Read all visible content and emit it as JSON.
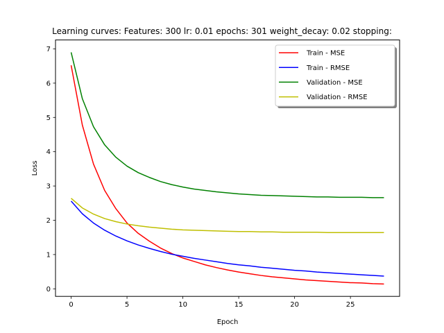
{
  "chart_data": {
    "type": "line",
    "title": "Learning curves: Features: 300 lr: 0.01 epochs: 301 weight_decay: 0.02 stopping:",
    "xlabel": "Epoch",
    "ylabel": "Loss",
    "xlim": [
      -1.4,
      29.4
    ],
    "ylim": [
      -0.22,
      7.26
    ],
    "xticks": [
      0,
      5,
      10,
      15,
      20,
      25
    ],
    "yticks": [
      0,
      1,
      2,
      3,
      4,
      5,
      6,
      7
    ],
    "grid": false,
    "legend_position": "top-right",
    "x": [
      0,
      1,
      2,
      3,
      4,
      5,
      6,
      7,
      8,
      9,
      10,
      11,
      12,
      13,
      14,
      15,
      16,
      17,
      18,
      19,
      20,
      21,
      22,
      23,
      24,
      25,
      26,
      27,
      28
    ],
    "series": [
      {
        "name": "Train - MSE",
        "color": "#ff0000",
        "values": [
          6.52,
          4.78,
          3.64,
          2.87,
          2.34,
          1.92,
          1.62,
          1.39,
          1.19,
          1.03,
          0.9,
          0.8,
          0.7,
          0.62,
          0.55,
          0.49,
          0.44,
          0.39,
          0.35,
          0.32,
          0.29,
          0.26,
          0.24,
          0.22,
          0.2,
          0.18,
          0.17,
          0.15,
          0.14
        ]
      },
      {
        "name": "Train - RMSE",
        "color": "#0000ff",
        "values": [
          2.56,
          2.19,
          1.92,
          1.71,
          1.54,
          1.4,
          1.28,
          1.18,
          1.09,
          1.01,
          0.95,
          0.89,
          0.84,
          0.79,
          0.74,
          0.7,
          0.67,
          0.63,
          0.6,
          0.57,
          0.54,
          0.52,
          0.49,
          0.47,
          0.45,
          0.43,
          0.41,
          0.39,
          0.37
        ]
      },
      {
        "name": "Validation - MSE",
        "color": "#008000",
        "values": [
          6.9,
          5.55,
          4.73,
          4.2,
          3.84,
          3.58,
          3.39,
          3.25,
          3.13,
          3.04,
          2.97,
          2.91,
          2.87,
          2.83,
          2.8,
          2.77,
          2.75,
          2.73,
          2.72,
          2.71,
          2.7,
          2.69,
          2.68,
          2.68,
          2.67,
          2.67,
          2.67,
          2.66,
          2.66
        ]
      },
      {
        "name": "Validation - RMSE",
        "color": "#bfbf00",
        "values": [
          2.64,
          2.36,
          2.18,
          2.05,
          1.96,
          1.89,
          1.84,
          1.8,
          1.77,
          1.74,
          1.72,
          1.71,
          1.7,
          1.69,
          1.68,
          1.67,
          1.67,
          1.66,
          1.66,
          1.65,
          1.65,
          1.65,
          1.65,
          1.64,
          1.64,
          1.64,
          1.64,
          1.64,
          1.64
        ]
      }
    ]
  }
}
